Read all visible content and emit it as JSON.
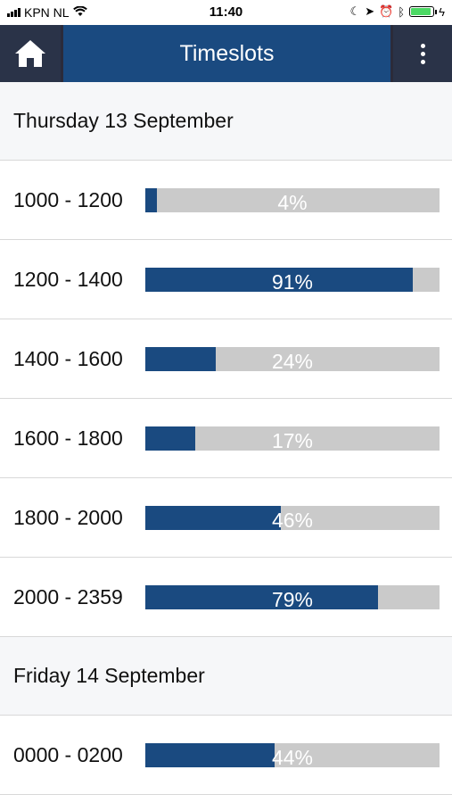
{
  "status": {
    "carrier": "KPN NL",
    "time": "11:40"
  },
  "header": {
    "title": "Timeslots"
  },
  "colors": {
    "accent": "#1a4a80",
    "track": "#cacaca",
    "nav_dark": "#2a3348"
  },
  "days": [
    {
      "label": "Thursday 13 September",
      "slots": [
        {
          "time": "1000 - 1200",
          "percent_label": "4%",
          "fill": 0.04
        },
        {
          "time": "1200 - 1400",
          "percent_label": "91%",
          "fill": 0.91
        },
        {
          "time": "1400 - 1600",
          "percent_label": "24%",
          "fill": 0.24
        },
        {
          "time": "1600 - 1800",
          "percent_label": "17%",
          "fill": 0.17
        },
        {
          "time": "1800 - 2000",
          "percent_label": "46%",
          "fill": 0.46
        },
        {
          "time": "2000 - 2359",
          "percent_label": "79%",
          "fill": 0.79
        }
      ]
    },
    {
      "label": "Friday 14 September",
      "slots": [
        {
          "time": "0000 - 0200",
          "percent_label": "44%",
          "fill": 0.44
        }
      ]
    }
  ]
}
